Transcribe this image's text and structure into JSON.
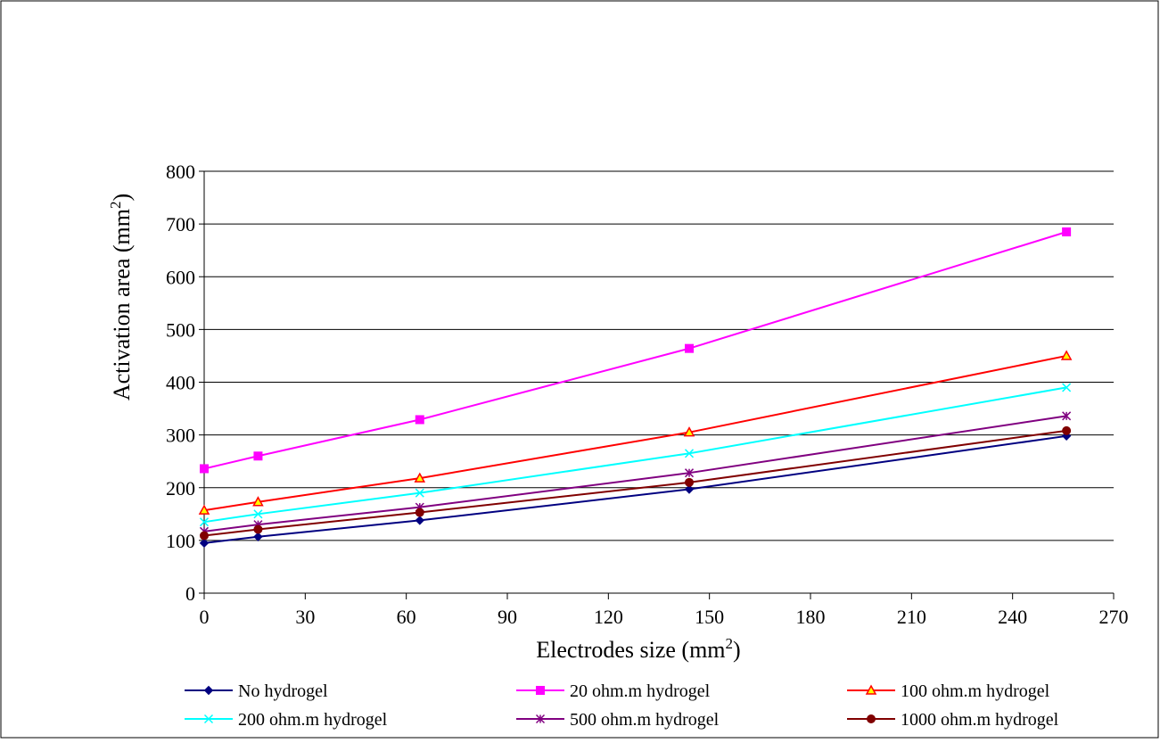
{
  "chart_data": {
    "type": "line",
    "xlabel": "Electrodes size (mm",
    "xlabel_sup": "2",
    "xlabel_tail": ")",
    "ylabel": "Activation area (mm",
    "ylabel_sup": "2",
    "ylabel_tail": ")",
    "xlim": [
      0,
      270
    ],
    "ylim": [
      0,
      800
    ],
    "xticks": [
      0,
      30,
      60,
      90,
      120,
      150,
      180,
      210,
      240,
      270
    ],
    "yticks": [
      0,
      100,
      200,
      300,
      400,
      500,
      600,
      700,
      800
    ],
    "grid": "horizontal",
    "legend_position": "bottom",
    "x": [
      0,
      16,
      64,
      144,
      256
    ],
    "series": [
      {
        "name": "No hydrogel",
        "values": [
          95,
          107,
          138,
          197,
          298
        ],
        "color": "#000080",
        "marker": "diamond"
      },
      {
        "name": "20 ohm.m hydrogel",
        "values": [
          236,
          260,
          329,
          464,
          685
        ],
        "color": "#FF00FF",
        "marker": "square"
      },
      {
        "name": "100 ohm.m hydrogel",
        "values": [
          157,
          173,
          218,
          305,
          450
        ],
        "color": "#FF0000",
        "marker": "triangle"
      },
      {
        "name": "200 ohm.m hydrogel",
        "values": [
          135,
          150,
          190,
          265,
          390
        ],
        "color": "#00FFFF",
        "marker": "x"
      },
      {
        "name": "500 ohm.m hydrogel",
        "values": [
          117,
          130,
          163,
          228,
          336
        ],
        "color": "#800080",
        "marker": "star"
      },
      {
        "name": "1000 ohm.m hydrogel",
        "values": [
          109,
          121,
          153,
          210,
          308
        ],
        "color": "#800000",
        "marker": "circle"
      }
    ]
  }
}
